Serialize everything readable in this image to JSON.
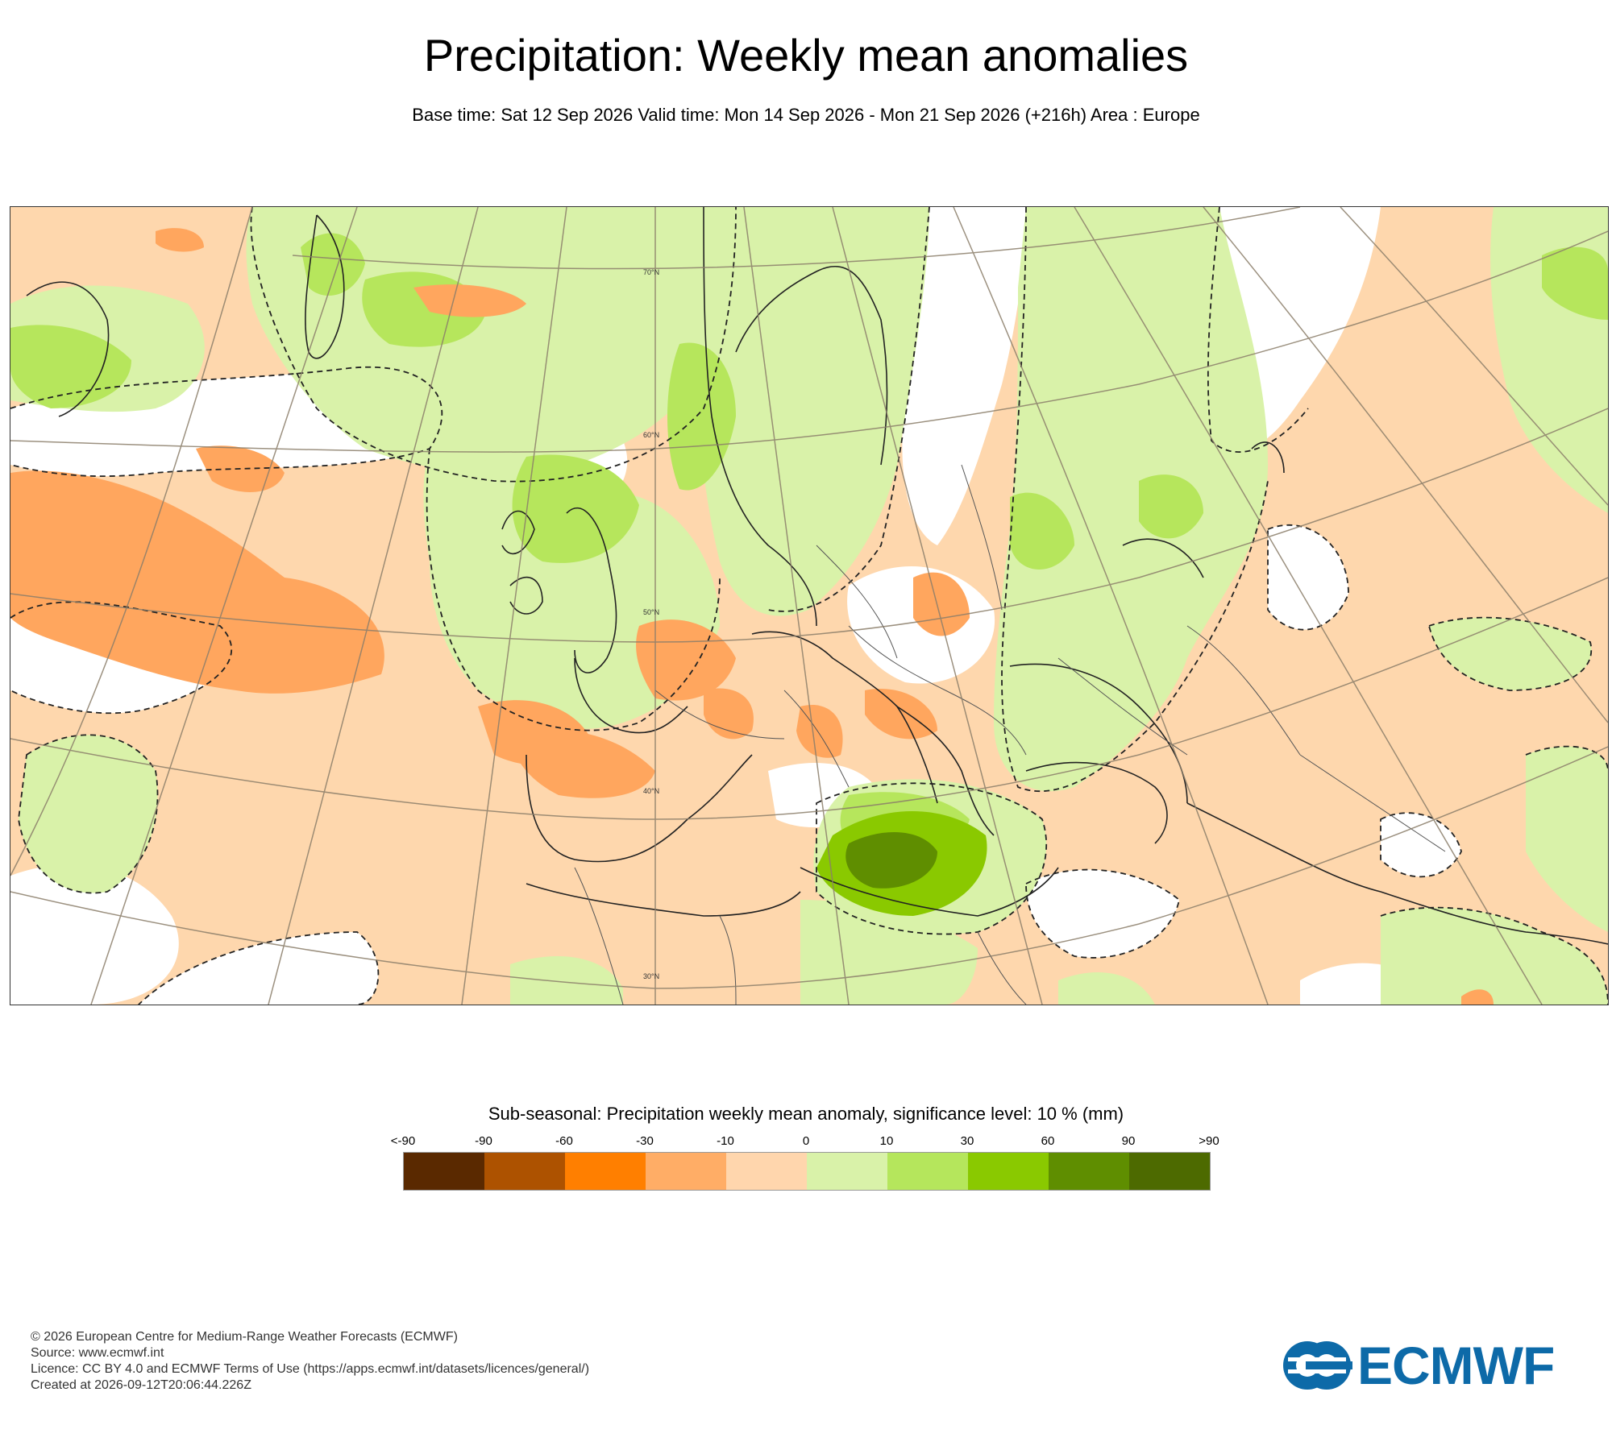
{
  "title": "Precipitation: Weekly mean anomalies",
  "subtitle": "Base time: Sat 12 Sep 2026 Valid time: Mon 14 Sep 2026 - Mon 21 Sep 2026 (+216h) Area : Europe",
  "map": {
    "parallel_labels": [
      "70°N",
      "60°N",
      "50°N",
      "40°N",
      "30°N"
    ],
    "colors": {
      "strong_dry": "#ffa65e",
      "dry": "#fed7ad",
      "wet": "#d9f2a9",
      "wetter": "#b6e65c",
      "wettest": "#8ac900",
      "very_wet": "#5f8e00",
      "land_outline": "#222222",
      "graticule": "#8b7e6a"
    }
  },
  "legend": {
    "title": "Sub-seasonal: Precipitation weekly mean anomaly, significance level: 10 % (mm)",
    "ticks": [
      "<-90",
      "-90",
      "-60",
      "-30",
      "-10",
      "0",
      "10",
      "30",
      "60",
      "90",
      ">90"
    ],
    "colors": [
      "#5a2900",
      "#ad5200",
      "#ff7f00",
      "#ffad66",
      "#ffd6ad",
      "#d9f2a9",
      "#b5e65c",
      "#8ac900",
      "#5f8e00",
      "#4d6a00"
    ]
  },
  "footer": {
    "copyright": "© 2026 European Centre for Medium-Range Weather Forecasts (ECMWF)",
    "source": "Source: www.ecmwf.int",
    "licence": "Licence: CC BY 4.0 and ECMWF Terms of Use (https://apps.ecmwf.int/datasets/licences/general/)",
    "created": "Created at 2026-09-12T20:06:44.226Z"
  },
  "logo": {
    "text": "ECMWF",
    "color": "#0d6aa8"
  }
}
